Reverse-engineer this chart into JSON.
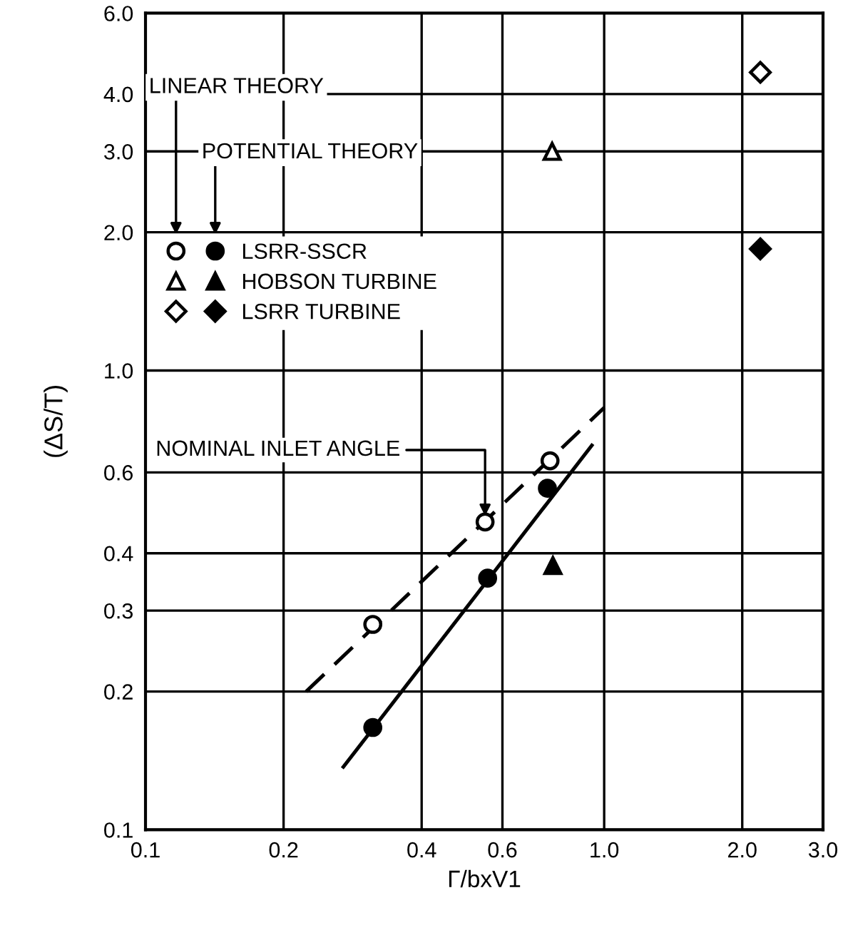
{
  "chart_data": {
    "type": "scatter",
    "xlabel": "Γ/bxV1",
    "ylabel": "(ΔS/T)",
    "log": "xy",
    "grid": true,
    "legend": "top left",
    "xlim": [
      0.1,
      3.0
    ],
    "ylim": [
      0.1,
      6.0
    ],
    "xticks": [
      0.1,
      0.2,
      0.4,
      0.6,
      {
        "value": 1,
        "label": "1.0"
      },
      {
        "value": 2,
        "label": "2.0"
      },
      {
        "value": 3,
        "label": "3.0"
      }
    ],
    "yticks": [
      0.1,
      0.2,
      0.3,
      0.4,
      0.6,
      {
        "value": 1,
        "label": "1.0"
      },
      {
        "value": 2,
        "label": "2.0"
      },
      {
        "value": 3,
        "label": "3.0"
      },
      {
        "value": 4,
        "label": "4.0"
      },
      {
        "value": 6,
        "label": "6.0"
      }
    ],
    "annotations": [
      "LINEAR THEORY",
      "POTENTIAL THEORY",
      {
        "text": "NOMINAL INLET ANGLE",
        "x": 0.55,
        "y": 0.468
      }
    ],
    "series": [
      {
        "marker": "circle",
        "color": "#ffffff",
        "x": [
          0.313,
          0.55,
          0.762
        ],
        "values": [
          0.28,
          0.468,
          0.636
        ]
      },
      {
        "name": "LSRR-SSCR",
        "marker": "circle",
        "color": "#000000",
        "x": [
          0.313,
          0.557,
          0.752
        ],
        "values": [
          0.167,
          0.353,
          0.554
        ]
      },
      {
        "marker": "triangle",
        "color": "#ffffff",
        "x": [
          0.77
        ],
        "values": [
          3.0
        ]
      },
      {
        "name": "HOBSON TURBINE",
        "marker": "triangle",
        "color": "#000000",
        "x": [
          0.773
        ],
        "values": [
          0.376
        ]
      },
      {
        "marker": "diamond",
        "color": "#ffffff",
        "x": [
          2.19
        ],
        "values": [
          4.46
        ]
      },
      {
        "name": "LSRR TURBINE",
        "marker": "diamond",
        "color": "#000000",
        "x": [
          2.19
        ],
        "values": [
          1.84
        ]
      },
      {
        "type": "line",
        "line_style": "dashed",
        "color": "#000000",
        "x": [
          0.224,
          1.0
        ],
        "values": [
          0.2,
          0.83
        ]
      },
      {
        "type": "line",
        "line_style": "solid",
        "color": "#000000",
        "x": [
          0.27,
          0.94
        ],
        "values": [
          0.137,
          0.687
        ]
      }
    ]
  }
}
